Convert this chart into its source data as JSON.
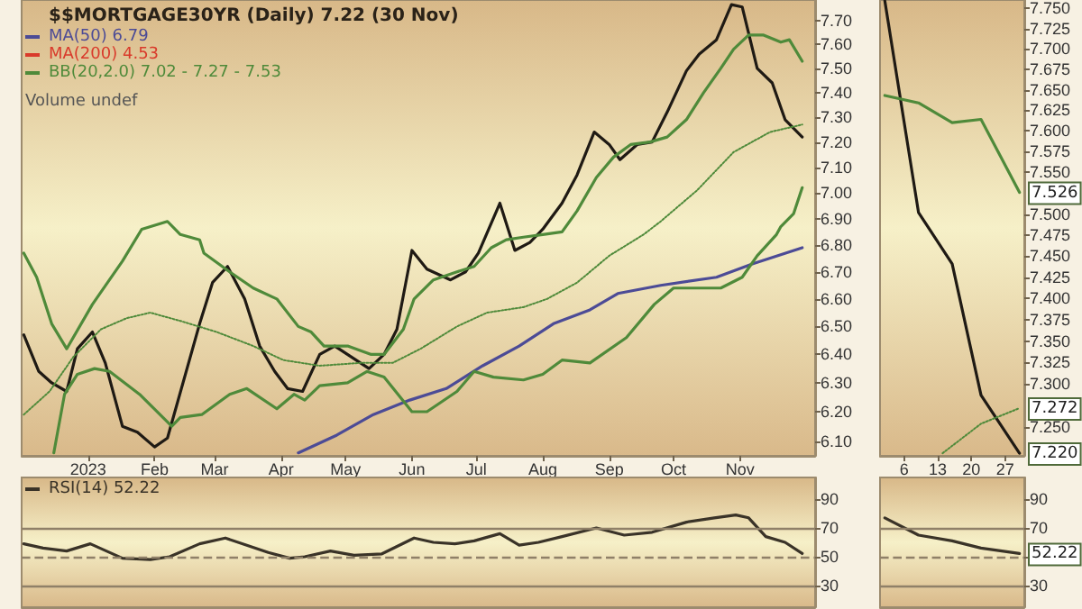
{
  "chart_data": [
    {
      "type": "line",
      "title": "$$MORTGAGE30YR (Daily) 7.22 (30 Nov)",
      "log": true,
      "legend": "top left",
      "marker": "none",
      "line_style": "solid",
      "grid": false,
      "annotations": [
        "Volume undef"
      ],
      "xlim": [
        "2022-12-01",
        "2023-12-06"
      ],
      "xticks": [
        {
          "value": "2023-01-01",
          "label": "2023"
        },
        {
          "value": "2023-02-01",
          "label": "Feb"
        },
        {
          "value": "2023-03-01",
          "label": "Mar"
        },
        {
          "value": "2023-04-01",
          "label": "Apr"
        },
        {
          "value": "2023-05-01",
          "label": "May"
        },
        {
          "value": "2023-06-01",
          "label": "Jun"
        },
        {
          "value": "2023-07-01",
          "label": "Jul"
        },
        {
          "value": "2023-08-01",
          "label": "Aug"
        },
        {
          "value": "2023-09-01",
          "label": "Sep"
        },
        {
          "value": "2023-10-01",
          "label": "Oct"
        },
        {
          "value": "2023-11-01",
          "label": "Nov"
        }
      ],
      "ylim": [
        6.05,
        7.79
      ],
      "yticks": [
        {
          "value": 6.1,
          "label": "6.10"
        },
        {
          "value": 6.2,
          "label": "6.20"
        },
        {
          "value": 6.3,
          "label": "6.30"
        },
        {
          "value": 6.4,
          "label": "6.40"
        },
        {
          "value": 6.5,
          "label": "6.50"
        },
        {
          "value": 6.6,
          "label": "6.60"
        },
        {
          "value": 6.7,
          "label": "6.70"
        },
        {
          "value": 6.8,
          "label": "6.80"
        },
        {
          "value": 6.9,
          "label": "6.90"
        },
        {
          "value": 7.0,
          "label": "7.00"
        },
        {
          "value": 7.1,
          "label": "7.10"
        },
        {
          "value": 7.2,
          "label": "7.20"
        },
        {
          "value": 7.3,
          "label": "7.30"
        },
        {
          "value": 7.4,
          "label": "7.40"
        },
        {
          "value": 7.5,
          "label": "7.50"
        },
        {
          "value": 7.6,
          "label": "7.60"
        },
        {
          "value": 7.7,
          "label": "7.70"
        }
      ],
      "series": [
        {
          "color": "#1f1a14",
          "x": [
            "2022-12-02",
            "2022-12-09",
            "2022-12-15",
            "2022-12-22",
            "2022-12-27",
            "2023-01-03",
            "2023-01-09",
            "2023-01-17",
            "2023-01-24",
            "2023-02-01",
            "2023-02-07",
            "2023-02-22",
            "2023-02-28",
            "2023-03-07",
            "2023-03-15",
            "2023-03-22",
            "2023-03-29",
            "2023-04-04",
            "2023-04-11",
            "2023-04-19",
            "2023-04-26",
            "2023-05-04",
            "2023-05-12",
            "2023-05-19",
            "2023-05-25",
            "2023-06-01",
            "2023-06-08",
            "2023-06-19",
            "2023-06-26",
            "2023-07-02",
            "2023-07-12",
            "2023-07-19",
            "2023-07-26",
            "2023-08-01",
            "2023-08-10",
            "2023-08-17",
            "2023-08-25",
            "2023-09-01",
            "2023-09-06",
            "2023-09-14",
            "2023-09-21",
            "2023-09-28",
            "2023-10-07",
            "2023-10-13",
            "2023-10-21",
            "2023-10-28",
            "2023-11-02",
            "2023-11-09",
            "2023-11-16",
            "2023-11-22",
            "2023-11-30"
          ],
          "values": [
            6.47,
            6.34,
            6.3,
            6.27,
            6.42,
            6.48,
            6.37,
            6.15,
            6.13,
            6.08,
            6.11,
            6.51,
            6.66,
            6.72,
            6.6,
            6.43,
            6.34,
            6.28,
            6.27,
            6.4,
            6.43,
            6.39,
            6.35,
            6.4,
            6.49,
            6.78,
            6.71,
            6.67,
            6.7,
            6.77,
            6.96,
            6.78,
            6.81,
            6.86,
            6.96,
            7.07,
            7.24,
            7.19,
            7.13,
            7.19,
            7.2,
            7.32,
            7.49,
            7.56,
            7.62,
            7.77,
            7.76,
            7.5,
            7.44,
            7.29,
            7.22
          ]
        },
        {
          "name": "MA(50) 6.79",
          "color": "#4c4b96",
          "x": [
            "2023-04-09",
            "2023-04-27",
            "2023-05-14",
            "2023-05-31",
            "2023-06-17",
            "2023-07-04",
            "2023-07-21",
            "2023-08-06",
            "2023-08-23",
            "2023-09-05",
            "2023-09-25",
            "2023-10-21",
            "2023-11-07",
            "2023-11-30"
          ],
          "values": [
            6.06,
            6.12,
            6.19,
            6.24,
            6.28,
            6.36,
            6.43,
            6.51,
            6.56,
            6.62,
            6.65,
            6.68,
            6.73,
            6.79
          ]
        },
        {
          "name": "MA(200) 4.53",
          "color": "#d93a2b"
        },
        {
          "name": "BB(20,2.0) 7.02 - 7.27 - 7.53",
          "color": "#4f8a3a",
          "x": [
            "2022-12-02",
            "2022-12-08",
            "2022-12-15",
            "2022-12-22",
            "2023-01-03",
            "2023-01-17",
            "2023-01-26",
            "2023-02-07",
            "2023-02-13",
            "2023-02-22",
            "2023-02-24",
            "2023-03-08",
            "2023-03-19",
            "2023-03-30",
            "2023-04-09",
            "2023-04-15",
            "2023-04-21",
            "2023-05-02",
            "2023-05-13",
            "2023-05-19",
            "2023-05-28",
            "2023-06-02",
            "2023-06-11",
            "2023-06-22",
            "2023-06-30",
            "2023-07-08",
            "2023-07-15",
            "2023-07-23",
            "2023-08-01",
            "2023-08-10",
            "2023-08-17",
            "2023-08-26",
            "2023-09-03",
            "2023-09-11",
            "2023-09-20",
            "2023-09-28",
            "2023-10-07",
            "2023-10-15",
            "2023-10-23",
            "2023-10-29",
            "2023-11-05",
            "2023-11-12",
            "2023-11-20",
            "2023-11-24",
            "2023-11-30"
          ],
          "values": [
            6.77,
            6.68,
            6.51,
            6.42,
            6.58,
            6.74,
            6.86,
            6.89,
            6.84,
            6.82,
            6.77,
            6.7,
            6.64,
            6.6,
            6.5,
            6.48,
            6.43,
            6.43,
            6.4,
            6.4,
            6.49,
            6.6,
            6.67,
            6.7,
            6.72,
            6.79,
            6.82,
            6.83,
            6.84,
            6.85,
            6.93,
            7.06,
            7.14,
            7.19,
            7.2,
            7.22,
            7.29,
            7.4,
            7.5,
            7.58,
            7.64,
            7.64,
            7.61,
            7.62,
            7.53
          ]
        },
        {
          "color": "#4f8a3a",
          "line_style": "dotted",
          "x": [
            "2022-12-02",
            "2022-12-14",
            "2022-12-25",
            "2023-01-07",
            "2023-01-19",
            "2023-01-30",
            "2023-02-13",
            "2023-03-02",
            "2023-03-19",
            "2023-04-02",
            "2023-04-19",
            "2023-05-08",
            "2023-05-23",
            "2023-06-05",
            "2023-06-22",
            "2023-07-06",
            "2023-07-23",
            "2023-08-03",
            "2023-08-17",
            "2023-09-01",
            "2023-09-17",
            "2023-09-25",
            "2023-10-12",
            "2023-10-29",
            "2023-11-15",
            "2023-11-30"
          ],
          "values": [
            6.19,
            6.27,
            6.39,
            6.49,
            6.53,
            6.55,
            6.52,
            6.48,
            6.43,
            6.38,
            6.36,
            6.37,
            6.37,
            6.42,
            6.5,
            6.55,
            6.57,
            6.6,
            6.66,
            6.76,
            6.84,
            6.89,
            7.01,
            7.16,
            7.24,
            7.27
          ]
        },
        {
          "color": "#4f8a3a",
          "x": [
            "2022-12-16",
            "2022-12-21",
            "2022-12-27",
            "2023-01-04",
            "2023-01-11",
            "2023-01-25",
            "2023-02-09",
            "2023-02-13",
            "2023-02-23",
            "2023-03-08",
            "2023-03-16",
            "2023-03-30",
            "2023-04-07",
            "2023-04-12",
            "2023-04-19",
            "2023-05-02",
            "2023-05-11",
            "2023-05-19",
            "2023-06-01",
            "2023-06-08",
            "2023-06-22",
            "2023-06-30",
            "2023-07-09",
            "2023-07-23",
            "2023-08-01",
            "2023-08-10",
            "2023-08-23",
            "2023-09-09",
            "2023-09-22",
            "2023-10-01",
            "2023-10-12",
            "2023-10-23",
            "2023-11-02",
            "2023-11-09",
            "2023-11-18",
            "2023-11-20",
            "2023-11-26",
            "2023-11-30"
          ],
          "values": [
            6.06,
            6.26,
            6.33,
            6.35,
            6.34,
            6.26,
            6.15,
            6.18,
            6.19,
            6.26,
            6.28,
            6.21,
            6.26,
            6.24,
            6.29,
            6.3,
            6.34,
            6.32,
            6.2,
            6.2,
            6.27,
            6.34,
            6.32,
            6.31,
            6.33,
            6.38,
            6.37,
            6.46,
            6.58,
            6.64,
            6.64,
            6.64,
            6.68,
            6.76,
            6.84,
            6.87,
            6.92,
            7.02
          ]
        }
      ]
    },
    {
      "type": "line",
      "log": true,
      "marker": "none",
      "line_style": "solid",
      "grid": false,
      "xlim": [
        "2023-11-01",
        "2023-12-01"
      ],
      "xticks": [
        {
          "value": "2023-11-06",
          "label": "6"
        },
        {
          "value": "2023-11-13",
          "label": "13"
        },
        {
          "value": "2023-11-20",
          "label": "20"
        },
        {
          "value": "2023-11-27",
          "label": "27"
        }
      ],
      "ylim": [
        7.217,
        7.76
      ],
      "yticks": [
        {
          "value": 7.25,
          "label": "7.250"
        },
        {
          "value": 7.3,
          "label": "7.300"
        },
        {
          "value": 7.325,
          "label": "7.325"
        },
        {
          "value": 7.35,
          "label": "7.350"
        },
        {
          "value": 7.375,
          "label": "7.375"
        },
        {
          "value": 7.4,
          "label": "7.400"
        },
        {
          "value": 7.425,
          "label": "7.425"
        },
        {
          "value": 7.45,
          "label": "7.450"
        },
        {
          "value": 7.475,
          "label": "7.475"
        },
        {
          "value": 7.5,
          "label": "7.500"
        },
        {
          "value": 7.55,
          "label": "7.550"
        },
        {
          "value": 7.575,
          "label": "7.575"
        },
        {
          "value": 7.6,
          "label": "7.600"
        },
        {
          "value": 7.625,
          "label": "7.625"
        },
        {
          "value": 7.65,
          "label": "7.650"
        },
        {
          "value": 7.675,
          "label": "7.675"
        },
        {
          "value": 7.7,
          "label": "7.700"
        },
        {
          "value": 7.725,
          "label": "7.725"
        },
        {
          "value": 7.75,
          "label": "7.750"
        }
      ],
      "annotations": [
        {
          "text": "7.526",
          "x": "2023-11-30",
          "y": 7.526
        },
        {
          "text": "7.272",
          "x": "2023-11-30",
          "y": 7.272
        },
        {
          "text": "7.220",
          "x": "2023-11-30",
          "y": 7.22
        }
      ],
      "series": [
        {
          "color": "#1f1a14",
          "x": [
            "2023-11-02",
            "2023-11-09",
            "2023-11-16",
            "2023-11-22",
            "2023-11-30"
          ],
          "values": [
            7.759,
            7.502,
            7.441,
            7.287,
            7.22
          ]
        },
        {
          "color": "#4f8a3a",
          "x": [
            "2023-11-02",
            "2023-11-09",
            "2023-11-16",
            "2023-11-22",
            "2023-11-30"
          ],
          "values": [
            7.643,
            7.634,
            7.61,
            7.614,
            7.526
          ]
        },
        {
          "color": "#4f8a3a",
          "line_style": "dotted",
          "x": [
            "2023-11-14",
            "2023-11-22",
            "2023-11-30"
          ],
          "values": [
            7.22,
            7.254,
            7.272
          ]
        }
      ]
    },
    {
      "type": "line",
      "marker": "none",
      "line_style": "solid",
      "grid": false,
      "legend": "top left",
      "tick_labels": "y",
      "xlim": [
        "2022-12-01",
        "2023-12-06"
      ],
      "ylim": [
        15,
        105
      ],
      "yticks": [
        30,
        50,
        70,
        90
      ],
      "ref_lines": [
        {
          "axis": "y",
          "value": 30,
          "color": "#8f8068",
          "line_style": "solid"
        },
        {
          "axis": "y",
          "value": 50,
          "color": "#8f8068",
          "line_style": "dashed"
        },
        {
          "axis": "y",
          "value": 70,
          "color": "#8f8068",
          "line_style": "solid"
        }
      ],
      "series": [
        {
          "name": "RSI(14) 52.22",
          "color": "#3a3328",
          "x": [
            "2022-12-02",
            "2022-12-11",
            "2022-12-22",
            "2023-01-02",
            "2023-01-17",
            "2023-01-30",
            "2023-02-08",
            "2023-02-22",
            "2023-03-06",
            "2023-03-16",
            "2023-03-26",
            "2023-04-05",
            "2023-04-12",
            "2023-04-24",
            "2023-05-05",
            "2023-05-18",
            "2023-06-02",
            "2023-06-11",
            "2023-06-21",
            "2023-06-30",
            "2023-07-12",
            "2023-07-21",
            "2023-07-30",
            "2023-08-10",
            "2023-08-26",
            "2023-09-08",
            "2023-09-21",
            "2023-10-07",
            "2023-10-20",
            "2023-10-30",
            "2023-11-05",
            "2023-11-13",
            "2023-11-22",
            "2023-11-30"
          ],
          "values": [
            59,
            56,
            54,
            59,
            49,
            48,
            50,
            59,
            63,
            58,
            53,
            49,
            50,
            54,
            51,
            52,
            63,
            60,
            59,
            61,
            66,
            58,
            60,
            64,
            70,
            65,
            67,
            74,
            77,
            79,
            77,
            64,
            60,
            52.22
          ]
        }
      ]
    },
    {
      "type": "line",
      "marker": "none",
      "line_style": "solid",
      "grid": false,
      "tick_labels": "y",
      "xlim": [
        "2023-11-01",
        "2023-12-01"
      ],
      "ylim": [
        15,
        105
      ],
      "yticks": [
        30,
        {
          "value": 50,
          "label": null
        },
        70,
        90
      ],
      "ref_lines": [
        {
          "axis": "y",
          "value": 30,
          "color": "#8f8068",
          "line_style": "solid"
        },
        {
          "axis": "y",
          "value": 50,
          "color": "#8f8068",
          "line_style": "dashed"
        },
        {
          "axis": "y",
          "value": 70,
          "color": "#8f8068",
          "line_style": "solid"
        }
      ],
      "annotations": [
        {
          "text": "52.22",
          "x": "2023-11-30",
          "y": 52.22
        }
      ],
      "series": [
        {
          "color": "#3a3328",
          "x": [
            "2023-11-02",
            "2023-11-09",
            "2023-11-16",
            "2023-11-22",
            "2023-11-30"
          ],
          "values": [
            77,
            65,
            61,
            56,
            52.22
          ]
        }
      ]
    }
  ]
}
